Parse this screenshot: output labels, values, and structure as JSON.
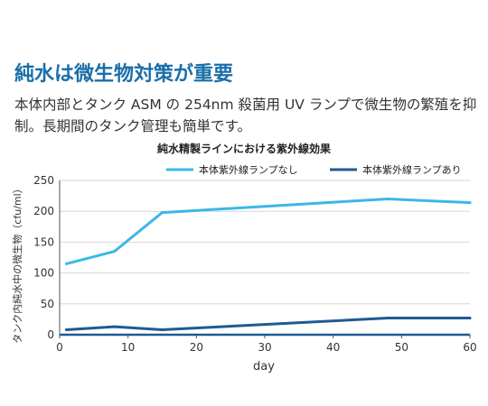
{
  "page": {
    "headline": "純水は微生物対策が重要",
    "description": "本体内部とタンク ASM の 254nm 殺菌用 UV ランプで微生物の繁殖を抑制。長期間のタンク管理も簡単です。"
  },
  "chart_data": {
    "type": "line",
    "title": "純水精製ラインにおける紫外線効果",
    "xlabel": "day",
    "ylabel": "タンク内純水中の微生物（cfu/ml）",
    "xlim": [
      0,
      60
    ],
    "ylim": [
      0,
      250
    ],
    "xticks": [
      0,
      10,
      20,
      30,
      40,
      50,
      60
    ],
    "yticks": [
      0,
      50,
      100,
      150,
      200,
      250
    ],
    "grid": true,
    "legend_position": "top",
    "series": [
      {
        "name": "本体紫外線ランプなし",
        "color": "#3bb8e6",
        "points": [
          [
            1,
            115
          ],
          [
            8,
            135
          ],
          [
            15,
            198
          ],
          [
            48,
            220
          ],
          [
            60,
            214
          ]
        ]
      },
      {
        "name": "本体紫外線ランプあり",
        "color": "#1f5a94",
        "points": [
          [
            1,
            8
          ],
          [
            8,
            13
          ],
          [
            15,
            8
          ],
          [
            48,
            27
          ],
          [
            60,
            27
          ]
        ]
      }
    ]
  }
}
